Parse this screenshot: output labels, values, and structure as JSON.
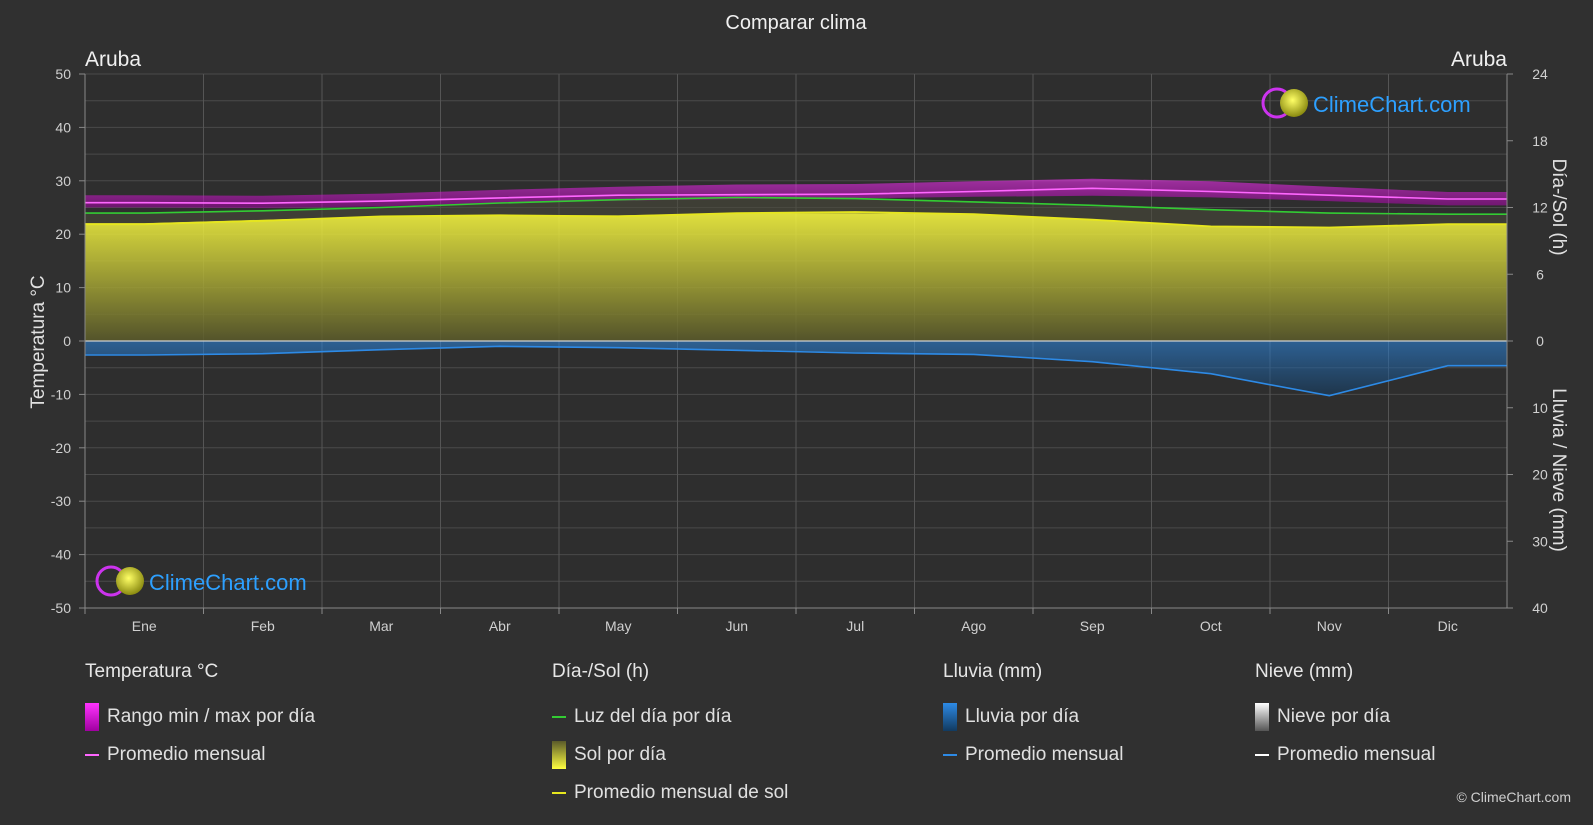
{
  "chart_data": {
    "type": "area",
    "title": "Comparar clima",
    "location_left": "Aruba",
    "location_right": "Aruba",
    "ylabel_left": "Temperatura °C",
    "ylabel_right_top": "Día-/Sol (h)",
    "ylabel_right_bottom": "Lluvia / Nieve (mm)",
    "months": [
      "Ene",
      "Feb",
      "Mar",
      "Abr",
      "May",
      "Jun",
      "Jul",
      "Ago",
      "Sep",
      "Oct",
      "Nov",
      "Dic"
    ],
    "y_left_ticks": [
      "50",
      "40",
      "30",
      "20",
      "10",
      "0",
      "-10",
      "-20",
      "-30",
      "-40",
      "-50"
    ],
    "y_right_top_ticks": [
      "24",
      "18",
      "12",
      "6",
      "0"
    ],
    "y_right_bottom_ticks": [
      "0",
      "10",
      "20",
      "30",
      "40"
    ],
    "ylim_temp": [
      -50,
      50
    ],
    "ylim_sun_hours": [
      0,
      24
    ],
    "ylim_rain_mm": [
      0,
      40
    ],
    "grid": true,
    "series": [
      {
        "name": "Rango min / max por día",
        "kind": "temp_range",
        "min": [
          25.0,
          24.9,
          25.2,
          25.8,
          26.3,
          26.6,
          26.7,
          27.0,
          27.2,
          26.9,
          26.2,
          25.4
        ],
        "max": [
          27.3,
          27.2,
          27.6,
          28.3,
          28.9,
          29.3,
          29.4,
          29.9,
          30.4,
          29.9,
          28.9,
          27.9
        ],
        "color": "#e040e0"
      },
      {
        "name": "Promedio mensual",
        "kind": "temp_mean",
        "values": [
          25.9,
          25.8,
          26.2,
          26.8,
          27.3,
          27.4,
          27.5,
          28.0,
          28.6,
          28.0,
          27.3,
          26.6
        ],
        "color": "#ff66ff"
      },
      {
        "name": "Luz del día por día",
        "kind": "daylight_hours",
        "values": [
          11.5,
          11.7,
          12.0,
          12.4,
          12.7,
          12.9,
          12.8,
          12.5,
          12.2,
          11.8,
          11.5,
          11.4
        ],
        "color": "#33cc33"
      },
      {
        "name": "Sol por día",
        "kind": "sun_hours_daily",
        "values": [
          10.6,
          10.9,
          11.2,
          11.3,
          11.3,
          11.5,
          11.5,
          11.4,
          10.9,
          10.3,
          10.2,
          10.5
        ],
        "color": "#c8c832"
      },
      {
        "name": "Promedio mensual de sol",
        "kind": "sun_hours_mean",
        "values": [
          10.5,
          10.8,
          11.2,
          11.3,
          11.2,
          11.5,
          11.6,
          11.4,
          10.9,
          10.3,
          10.2,
          10.5
        ],
        "color": "#e6e61e"
      },
      {
        "name": "Lluvia por día",
        "kind": "rain_daily",
        "values": [
          2.0,
          1.8,
          1.3,
          0.8,
          1.0,
          1.3,
          1.7,
          2.0,
          3.0,
          4.8,
          8.3,
          3.6
        ],
        "color": "#1e78c8"
      },
      {
        "name": "Promedio mensual",
        "kind": "rain_mean",
        "values": [
          2.1,
          1.9,
          1.3,
          0.8,
          1.0,
          1.4,
          1.8,
          2.0,
          3.1,
          4.9,
          8.2,
          3.7
        ],
        "color": "#2d8ae6"
      },
      {
        "name": "Nieve por día",
        "kind": "snow_daily",
        "values": [
          0,
          0,
          0,
          0,
          0,
          0,
          0,
          0,
          0,
          0,
          0,
          0
        ],
        "color": "#dddddd"
      },
      {
        "name": "Promedio mensual",
        "kind": "snow_mean",
        "values": [
          0,
          0,
          0,
          0,
          0,
          0,
          0,
          0,
          0,
          0,
          0,
          0
        ],
        "color": "#ffffff"
      }
    ]
  },
  "brand": {
    "watermark_text": "ClimeChart.com",
    "copyright": "© ClimeChart.com"
  },
  "legend": {
    "groups": [
      {
        "title": "Temperatura °C",
        "items": [
          {
            "label": "Rango min / max por día",
            "swatch": "block",
            "color": "#e020e0"
          },
          {
            "label": "Promedio mensual",
            "swatch": "line",
            "color": "#ff66ff"
          }
        ]
      },
      {
        "title": "Día-/Sol (h)",
        "items": [
          {
            "label": "Luz del día por día",
            "swatch": "line",
            "color": "#33cc33"
          },
          {
            "label": "Sol por día",
            "swatch": "block",
            "color": "#d8d832"
          },
          {
            "label": "Promedio mensual de sol",
            "swatch": "line",
            "color": "#e6e61e"
          }
        ]
      },
      {
        "title": "Lluvia (mm)",
        "items": [
          {
            "label": "Lluvia por día",
            "swatch": "block",
            "color": "#1e78c8"
          },
          {
            "label": "Promedio mensual",
            "swatch": "line",
            "color": "#2d8ae6"
          }
        ]
      },
      {
        "title": "Nieve (mm)",
        "items": [
          {
            "label": "Nieve por día",
            "swatch": "block",
            "color": "#dddddd"
          },
          {
            "label": "Promedio mensual",
            "swatch": "line",
            "color": "#ffffff"
          }
        ]
      }
    ]
  }
}
